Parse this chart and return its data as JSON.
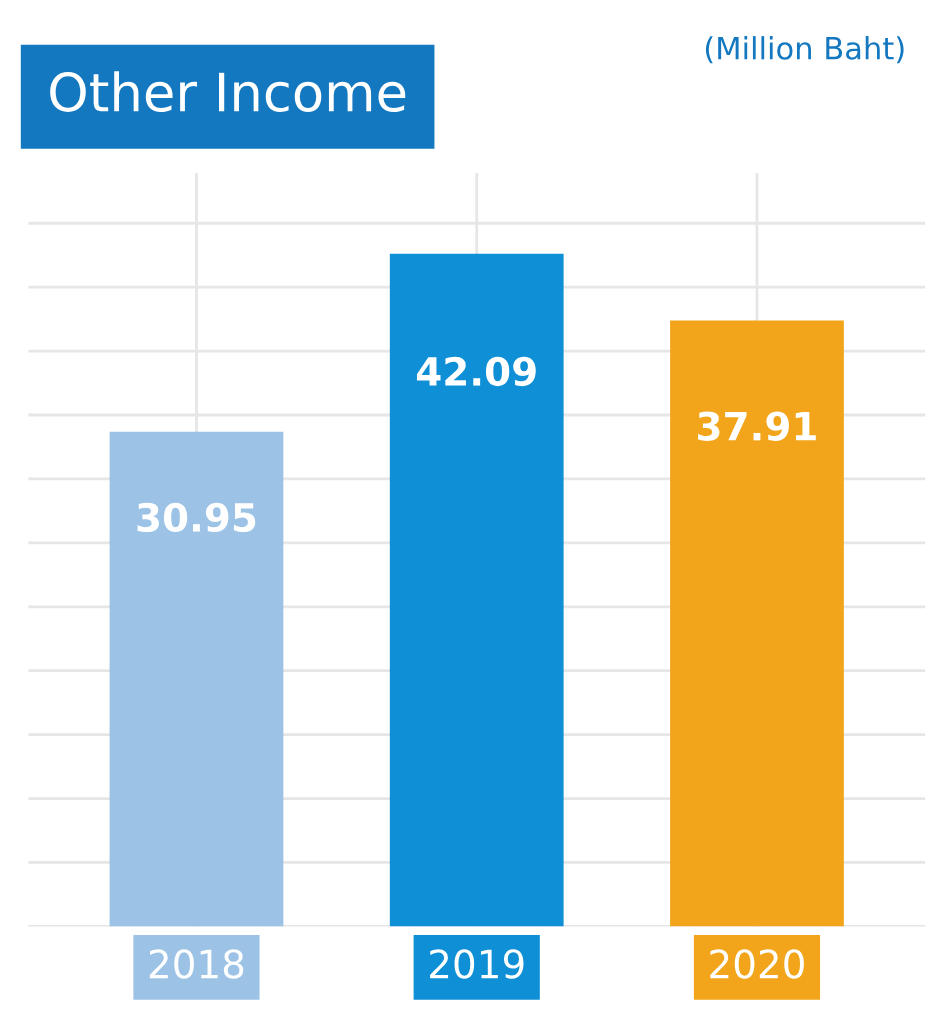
{
  "chart_data": {
    "type": "bar",
    "title": "Other Income",
    "annotations": [
      "(Million Baht)"
    ],
    "categories": [
      "2018",
      "2019",
      "2020"
    ],
    "values": [
      30.95,
      42.09,
      37.91
    ],
    "colors": [
      "#9cc3e6",
      "#0e8fd6",
      "#f2a51a"
    ],
    "data_labels": true,
    "grid": true,
    "tick_labels": "x",
    "legend": false
  }
}
